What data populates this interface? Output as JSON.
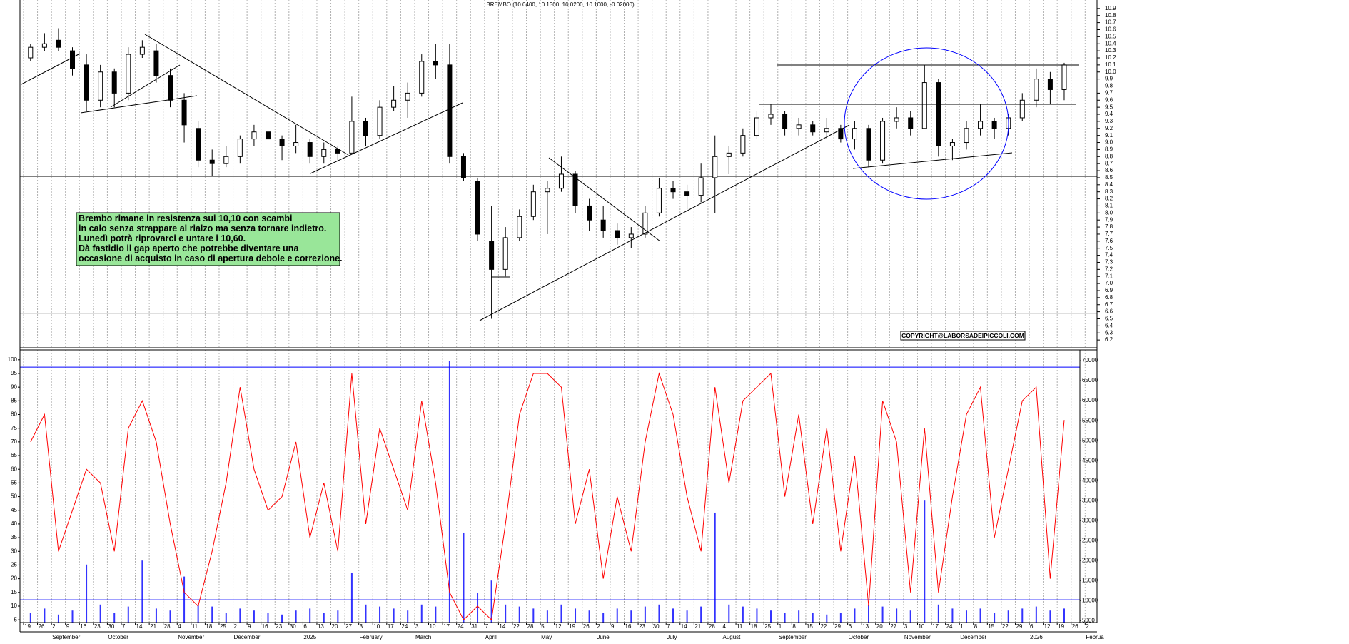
{
  "chart_data": [
    {
      "type": "candlestick",
      "title": "BREMBO (10.0400, 10.1300, 10.0200, 10.1000, -0.02000)",
      "categories": [
        "19",
        "26",
        "2",
        "9",
        "16",
        "23",
        "30",
        "7",
        "14",
        "21",
        "28",
        "4",
        "11",
        "18",
        "25",
        "2",
        "9",
        "16",
        "23",
        "30",
        "6",
        "13",
        "20",
        "27",
        "3",
        "10",
        "17",
        "24",
        "3",
        "10",
        "17",
        "24",
        "31",
        "7",
        "14",
        "22",
        "28",
        "5",
        "12",
        "19",
        "26",
        "2",
        "9",
        "16",
        "23",
        "30",
        "7",
        "14",
        "21",
        "28",
        "4",
        "11",
        "18",
        "25",
        "1",
        "8",
        "15",
        "22",
        "29",
        "6",
        "13",
        "20",
        "27",
        "3",
        "10",
        "17",
        "24",
        "1",
        "8",
        "15",
        "22",
        "29",
        "6",
        "12",
        "19",
        "26",
        "2"
      ],
      "months": [
        null,
        null,
        "September",
        null,
        null,
        null,
        "October",
        null,
        null,
        null,
        null,
        "November",
        null,
        null,
        null,
        "December",
        null,
        null,
        null,
        null,
        "2025",
        null,
        null,
        null,
        "February",
        null,
        null,
        null,
        "March",
        null,
        null,
        null,
        null,
        "April",
        null,
        null,
        null,
        "May",
        null,
        null,
        null,
        "June",
        null,
        null,
        null,
        null,
        "July",
        null,
        null,
        null,
        "August",
        null,
        null,
        null,
        "September",
        null,
        null,
        null,
        null,
        "October",
        null,
        null,
        null,
        "November",
        null,
        null,
        null,
        "December",
        null,
        null,
        null,
        null,
        "2026",
        null,
        null,
        null,
        "Februa"
      ],
      "open": [
        10.2,
        10.35,
        10.45,
        10.3,
        10.1,
        9.6,
        10.0,
        9.7,
        10.25,
        10.3,
        9.95,
        9.6,
        9.2,
        8.75,
        8.7,
        8.8,
        9.05,
        9.15,
        9.05,
        8.95,
        9.0,
        8.8,
        8.9,
        8.85,
        9.3,
        9.1,
        9.5,
        9.6,
        9.7,
        10.15,
        10.1,
        8.8,
        8.45,
        7.6,
        7.2,
        7.65,
        7.95,
        8.3,
        8.35,
        8.55,
        8.1,
        7.9,
        7.75,
        7.65,
        7.7,
        8.0,
        8.35,
        8.3,
        8.25,
        8.5,
        8.8,
        8.85,
        9.1,
        9.35,
        9.4,
        9.2,
        9.25,
        9.15,
        9.2,
        9.05,
        9.2,
        8.75,
        9.3,
        9.35,
        9.2,
        9.85,
        8.95,
        9.0,
        9.2,
        9.3,
        9.2,
        9.35,
        9.6,
        9.9,
        9.75,
        null,
        null
      ],
      "high": [
        10.4,
        10.55,
        10.62,
        10.35,
        10.25,
        10.1,
        10.05,
        10.35,
        10.45,
        10.4,
        10.05,
        9.7,
        9.3,
        8.9,
        8.95,
        9.1,
        9.25,
        9.2,
        9.1,
        9.25,
        9.05,
        9.0,
        8.95,
        9.65,
        9.35,
        9.6,
        9.8,
        9.85,
        10.25,
        10.4,
        10.4,
        8.85,
        8.5,
        8.1,
        7.8,
        8.05,
        8.4,
        8.45,
        8.8,
        8.6,
        8.2,
        8.1,
        7.85,
        7.8,
        8.1,
        8.5,
        8.45,
        8.4,
        8.7,
        9.1,
        8.95,
        9.2,
        9.45,
        9.55,
        9.45,
        9.35,
        9.3,
        9.35,
        9.25,
        9.3,
        9.25,
        9.35,
        9.5,
        9.45,
        10.1,
        9.9,
        9.05,
        9.3,
        9.55,
        9.35,
        9.4,
        9.7,
        10.05,
        10.0,
        10.13,
        null,
        null
      ],
      "low": [
        10.15,
        10.3,
        10.3,
        9.95,
        9.45,
        9.5,
        9.5,
        9.6,
        10.2,
        9.85,
        9.5,
        9.0,
        8.65,
        8.52,
        8.65,
        8.7,
        8.95,
        8.95,
        8.75,
        8.85,
        8.7,
        8.7,
        8.75,
        8.85,
        8.95,
        9.05,
        9.45,
        9.35,
        9.65,
        9.9,
        8.7,
        8.45,
        7.6,
        6.5,
        7.1,
        7.6,
        7.9,
        7.7,
        8.3,
        8.0,
        7.75,
        7.65,
        7.55,
        7.5,
        7.65,
        7.95,
        8.2,
        8.05,
        8.15,
        8.0,
        8.55,
        8.8,
        9.05,
        9.25,
        9.1,
        9.1,
        9.1,
        9.05,
        9.0,
        8.9,
        8.65,
        8.7,
        9.2,
        9.1,
        9.2,
        8.8,
        8.75,
        8.9,
        9.1,
        9.05,
        9.1,
        9.3,
        9.5,
        9.55,
        9.6,
        null,
        null
      ],
      "close": [
        10.35,
        10.4,
        10.35,
        10.05,
        9.6,
        10.0,
        9.7,
        10.25,
        10.35,
        9.95,
        9.6,
        9.25,
        8.75,
        8.7,
        8.8,
        9.05,
        9.15,
        9.05,
        8.95,
        9.0,
        8.8,
        8.9,
        8.85,
        9.3,
        9.1,
        9.5,
        9.6,
        9.7,
        10.15,
        10.1,
        8.8,
        8.5,
        7.7,
        7.2,
        7.65,
        7.95,
        8.3,
        8.35,
        8.55,
        8.1,
        7.9,
        7.75,
        7.65,
        7.7,
        8.0,
        8.35,
        8.3,
        8.25,
        8.5,
        8.8,
        8.85,
        9.1,
        9.35,
        9.4,
        9.2,
        9.25,
        9.15,
        9.2,
        9.05,
        9.2,
        8.75,
        9.3,
        9.35,
        9.2,
        9.85,
        8.95,
        9.0,
        9.2,
        9.3,
        9.2,
        9.35,
        9.6,
        9.9,
        9.75,
        10.1,
        null,
        null
      ],
      "ylim": [
        6.09,
        11.02
      ],
      "yticks": [
        6.2,
        6.3,
        6.4,
        6.5,
        6.6,
        6.7,
        6.8,
        6.9,
        {
          "value": 7,
          "label": "7.0"
        },
        7.1,
        7.2,
        7.3,
        7.4,
        7.5,
        7.6,
        7.7,
        7.8,
        7.9,
        {
          "value": 8,
          "label": "8.0"
        },
        8.1,
        8.2,
        8.3,
        8.4,
        8.5,
        8.6,
        8.7,
        8.8,
        8.9,
        {
          "value": 9,
          "label": "9.0"
        },
        9.1,
        9.2,
        9.3,
        9.4,
        9.5,
        9.6,
        9.7,
        9.8,
        9.9,
        {
          "value": 10,
          "label": "10.0"
        },
        10.1,
        10.2,
        10.3,
        10.4,
        10.5,
        10.6,
        10.7,
        10.8,
        10.9
      ],
      "levels": [
        8.52,
        6.58
      ],
      "grid": true,
      "annotation": [
        "Brembo rimane in resistenza sui 10,10 con scambi",
        "in calo senza strappare al rialzo ma senza tornare indietro.",
        "Lunedì potrà riprovarci e untare i 10,60.",
        "Dà fastidio il gap aperto che potrebbe diventare una",
        "occasione di acquisto in caso di apertura debole e correzione."
      ],
      "copyright": "COPYRIGHT@LABORSADEIPICCOLI.COM"
    },
    {
      "type": "line",
      "color": "#ff0000",
      "values": [
        70,
        80,
        30,
        45,
        60,
        55,
        30,
        75,
        85,
        70,
        40,
        15,
        10,
        30,
        55,
        90,
        60,
        45,
        50,
        70,
        35,
        55,
        30,
        95,
        40,
        75,
        60,
        45,
        85,
        55,
        15,
        5,
        10,
        5,
        40,
        80,
        95,
        95,
        90,
        40,
        60,
        20,
        50,
        30,
        70,
        95,
        80,
        50,
        30,
        90,
        55,
        85,
        90,
        95,
        50,
        80,
        40,
        75,
        30,
        65,
        10,
        85,
        70,
        15,
        75,
        15,
        50,
        80,
        90,
        35,
        60,
        85,
        90,
        20,
        78,
        null,
        null
      ],
      "ylim": [
        4,
        103.6
      ],
      "yticks": [
        5,
        10,
        15,
        20,
        25,
        30,
        35,
        40,
        45,
        50,
        55,
        60,
        65,
        70,
        75,
        80,
        85,
        90,
        95,
        100
      ],
      "levels": [
        97.3,
        12.3
      ],
      "volume": {
        "color": "#3333ff",
        "values": [
          7000,
          8000,
          6500,
          7500,
          19000,
          9000,
          7000,
          8500,
          20000,
          8000,
          7500,
          16000,
          9000,
          8500,
          7000,
          8000,
          7500,
          7000,
          6500,
          7500,
          8000,
          7000,
          7500,
          17000,
          9000,
          8500,
          8000,
          7500,
          9000,
          8500,
          70000,
          27000,
          12000,
          15000,
          9000,
          8500,
          8000,
          7500,
          9000,
          8000,
          7500,
          7000,
          8000,
          7500,
          8500,
          9000,
          8000,
          7500,
          8500,
          32000,
          9000,
          8500,
          8000,
          7500,
          7000,
          7500,
          7000,
          6500,
          7000,
          8000,
          9000,
          8500,
          8000,
          7500,
          35000,
          9000,
          8000,
          7500,
          8000,
          7000,
          7500,
          8000,
          8500,
          7500,
          8000,
          null,
          null
        ],
        "y2lim": [
          4500,
          72700
        ],
        "y2ticks": [
          5000,
          10000,
          15000,
          20000,
          25000,
          30000,
          35000,
          40000,
          45000,
          50000,
          55000,
          60000,
          65000,
          70000
        ]
      }
    }
  ]
}
